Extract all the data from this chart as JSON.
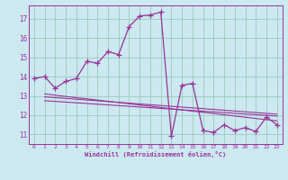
{
  "xlabel": "Windchill (Refroidissement éolien,°C)",
  "bg_color": "#cce8f0",
  "line_color": "#993399",
  "grid_color": "#99ccbb",
  "xlim": [
    -0.5,
    23.5
  ],
  "ylim": [
    10.5,
    17.7
  ],
  "yticks": [
    11,
    12,
    13,
    14,
    15,
    16,
    17
  ],
  "xticks": [
    0,
    1,
    2,
    3,
    4,
    5,
    6,
    7,
    8,
    9,
    10,
    11,
    12,
    13,
    14,
    15,
    16,
    17,
    18,
    19,
    20,
    21,
    22,
    23
  ],
  "main_x": [
    0,
    1,
    2,
    3,
    4,
    5,
    6,
    7,
    8,
    9,
    10,
    11,
    12,
    13,
    14,
    15,
    16,
    17,
    18,
    19,
    20,
    21,
    22,
    23
  ],
  "main_y": [
    13.9,
    14.0,
    13.4,
    13.75,
    13.9,
    14.8,
    14.7,
    15.3,
    15.15,
    16.6,
    17.15,
    17.2,
    17.35,
    10.9,
    13.55,
    13.65,
    11.2,
    11.1,
    11.5,
    11.2,
    11.35,
    11.15,
    11.9,
    11.5
  ],
  "line2_x": [
    1,
    23
  ],
  "line2_y": [
    13.1,
    11.7
  ],
  "line3_x": [
    1,
    23
  ],
  "line3_y": [
    12.95,
    12.05
  ],
  "line4_x": [
    1,
    23
  ],
  "line4_y": [
    12.75,
    11.95
  ]
}
